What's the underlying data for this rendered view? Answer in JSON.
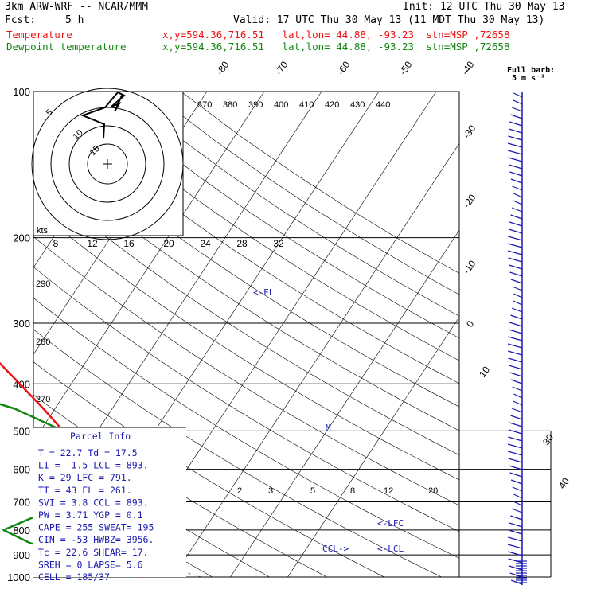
{
  "header": {
    "model": "3km ARW-WRF -- NCAR/MMM",
    "init": "Init: 12 UTC Thu 30 May 13",
    "fcst_label": "Fcst:",
    "fcst_value": "5 h",
    "valid": "Valid: 17 UTC Thu 30 May 13 (11 MDT Thu 30 May 13)",
    "temp_label": "Temperature",
    "temp_loc": "x,y=594.36,716.51   lat,lon= 44.88, -93.23  stn=MSP ,72658",
    "dew_label": "Dewpoint temperature",
    "dew_loc": "x,y=594.36,716.51   lat,lon= 44.88, -93.23  stn=MSP ,72658",
    "barb_title": "Full barb:",
    "barb_unit": "5 m s⁻¹"
  },
  "colors": {
    "temperature": "#ee1111",
    "dewpoint": "#118811",
    "annot": "#1a1ab0",
    "grid": "#000000"
  },
  "chart_data": {
    "type": "line",
    "title": "Skew-T log-P sounding",
    "ylabel": "Pressure (hPa)",
    "xlabel": "Temperature (C)",
    "pressure_levels": [
      100,
      200,
      300,
      400,
      500,
      600,
      700,
      800,
      900,
      1000
    ],
    "temp_ticks": [
      "-80",
      "-70",
      "-60",
      "-50",
      "-40",
      "-30",
      "-20",
      "-10",
      "0",
      "10",
      "30",
      "40"
    ],
    "theta_ticks": [
      "370",
      "380",
      "390",
      "400",
      "410",
      "420",
      "430",
      "440"
    ],
    "theta_left": [
      "290",
      "280",
      "270"
    ],
    "mixing_ratio_ticks": [
      "2",
      "3",
      "5",
      "8",
      "12",
      "20"
    ],
    "series": [
      {
        "name": "Temperature",
        "color": "#ee1111",
        "points": [
          [
            100,
            -63
          ],
          [
            130,
            -58
          ],
          [
            160,
            -55
          ],
          [
            200,
            -53
          ],
          [
            250,
            -45
          ],
          [
            300,
            -36
          ],
          [
            350,
            -27
          ],
          [
            400,
            -19
          ],
          [
            450,
            -12
          ],
          [
            500,
            -6
          ],
          [
            560,
            -2
          ],
          [
            600,
            2
          ],
          [
            650,
            4
          ],
          [
            700,
            7
          ],
          [
            750,
            10.5
          ],
          [
            800,
            13
          ],
          [
            850,
            15
          ],
          [
            900,
            17
          ],
          [
            950,
            20
          ],
          [
            1000,
            25
          ]
        ]
      },
      {
        "name": "Dewpoint",
        "color": "#118811",
        "points": [
          [
            100,
            -76
          ],
          [
            150,
            -73
          ],
          [
            180,
            -76
          ],
          [
            200,
            -77
          ],
          [
            250,
            -65
          ],
          [
            300,
            -57
          ],
          [
            350,
            -50
          ],
          [
            400,
            -34
          ],
          [
            450,
            -17
          ],
          [
            500,
            -6
          ],
          [
            560,
            -2
          ],
          [
            600,
            -1
          ],
          [
            650,
            -2
          ],
          [
            700,
            -3
          ],
          [
            750,
            -1
          ],
          [
            800,
            -5
          ],
          [
            850,
            1
          ],
          [
            900,
            10
          ],
          [
            950,
            16
          ],
          [
            1000,
            18
          ]
        ]
      }
    ],
    "annotations": [
      "<-EL",
      "M",
      "<-LFC",
      "CCL->",
      "<-LCL"
    ],
    "hodograph": {
      "ring_labels": [
        "5",
        "10",
        "15"
      ],
      "unit": "kts"
    },
    "hodo_speed_ticks": [
      "8",
      "12",
      "16",
      "20",
      "24",
      "28",
      "32"
    ]
  },
  "parcel_info": {
    "title": "Parcel Info",
    "rows": [
      "T  =   22.7 Td =  17.5",
      "LI =   -1.5 LCL =  893.",
      "K  =     29 LFC =  791.",
      "TT =     43 EL  =  261.",
      "SVI =   3.8 CCL =  893.",
      "PW =   3.71 YGP =   0.1",
      "CAPE =  255 SWEAT=  195",
      "CIN =   -53 HWBZ= 3956.",
      "Tc =   22.6 SHEAR=  17.",
      "SREH =    0 LAPSE=  5.6",
      "CELL = 185/37"
    ]
  }
}
